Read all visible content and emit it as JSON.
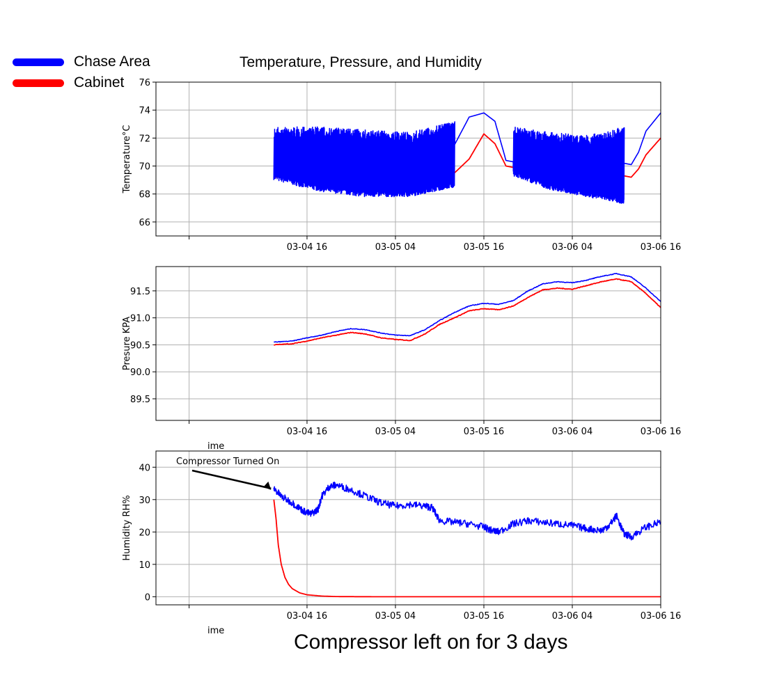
{
  "figure": {
    "title": "Temperature, Pressure, and Humidity",
    "caption": "Compressor left on for 3 days",
    "legend": [
      {
        "name": "Chase Area",
        "color": "#0000ff"
      },
      {
        "name": "Cabinet",
        "color": "#ff0000"
      }
    ]
  },
  "chart_data": [
    {
      "type": "line",
      "title": "",
      "xlabel": "",
      "ylabel": "Temperature°C",
      "ylim": [
        65,
        76
      ],
      "yticks": [
        "66",
        "68",
        "70",
        "72",
        "74",
        "76"
      ],
      "xticks": [
        "03-04 16",
        "03-05 04",
        "03-05 16",
        "03-06 04",
        "03-06 16"
      ],
      "x_hours_note": "hours since 03-04 00:00",
      "grid": true,
      "series": [
        {
          "name": "Chase Area",
          "color": "#0000ff",
          "x": [
            11.5,
            14,
            16,
            18,
            20,
            22,
            24,
            26,
            28,
            30,
            32,
            34,
            35,
            36,
            38,
            40,
            41.5,
            43,
            44,
            45,
            46,
            48,
            50,
            52,
            54,
            56,
            58,
            59,
            60,
            61,
            62,
            64
          ],
          "y": [
            70.1,
            70.0,
            70.2,
            70.3,
            70.2,
            70.0,
            69.9,
            69.8,
            69.8,
            69.9,
            70.3,
            70.6,
            70.2,
            71.5,
            73.5,
            73.8,
            73.2,
            70.4,
            70.3,
            70.2,
            70.0,
            69.8,
            69.6,
            69.4,
            69.2,
            69.0,
            69.4,
            70.2,
            70.1,
            71.0,
            72.5,
            73.8
          ],
          "oscillation": {
            "from": 11.5,
            "to": 36,
            "low": [
              69.0,
              68.2,
              67.8,
              67.8,
              68.5
            ],
            "high": [
              72.8,
              72.8,
              72.6,
              72.4,
              73.2
            ]
          },
          "oscillation2": {
            "from": 44,
            "to": 59,
            "low": [
              69.3,
              68.3,
              67.8,
              67.3
            ],
            "high": [
              72.8,
              72.4,
              72.2,
              72.8
            ]
          }
        },
        {
          "name": "Cabinet",
          "color": "#ff0000",
          "x": [
            11.5,
            14,
            16,
            18,
            20,
            22,
            24,
            26,
            28,
            30,
            32,
            34,
            35,
            36,
            38,
            40,
            41.5,
            43,
            44,
            45,
            46,
            48,
            50,
            52,
            54,
            56,
            58,
            59,
            60,
            61,
            62,
            64
          ],
          "y": [
            69.2,
            69.2,
            69.4,
            69.3,
            69.1,
            69.0,
            68.9,
            68.9,
            68.9,
            69.0,
            69.3,
            69.7,
            69.2,
            69.5,
            70.5,
            72.3,
            71.6,
            70.0,
            69.9,
            69.7,
            69.6,
            69.5,
            69.4,
            69.3,
            69.2,
            69.2,
            69.5,
            69.3,
            69.2,
            69.8,
            70.8,
            72.0
          ]
        }
      ]
    },
    {
      "type": "line",
      "title": "",
      "xlabel": "ime",
      "ylabel": "Presure KPA",
      "ylim": [
        89.1,
        91.95
      ],
      "yticks": [
        "89.5",
        "90.0",
        "90.5",
        "91.0",
        "91.5"
      ],
      "xticks": [
        "03-04 16",
        "03-05 04",
        "03-05 16",
        "03-06 04",
        "03-06 16"
      ],
      "grid": true,
      "series": [
        {
          "name": "Chase Area",
          "color": "#0000ff",
          "x": [
            11.5,
            14,
            16,
            18,
            20,
            22,
            24,
            26,
            28,
            30,
            32,
            34,
            36,
            38,
            40,
            42,
            44,
            46,
            48,
            50,
            52,
            54,
            56,
            58,
            60,
            62,
            64
          ],
          "y": [
            90.55,
            90.57,
            90.63,
            90.68,
            90.75,
            90.8,
            90.78,
            90.72,
            90.68,
            90.67,
            90.78,
            90.95,
            91.1,
            91.22,
            91.27,
            91.25,
            91.32,
            91.5,
            91.63,
            91.67,
            91.65,
            91.7,
            91.77,
            91.82,
            91.76,
            91.55,
            91.3
          ]
        },
        {
          "name": "Cabinet",
          "color": "#ff0000",
          "x": [
            11.5,
            14,
            16,
            18,
            20,
            22,
            24,
            26,
            28,
            30,
            32,
            34,
            36,
            38,
            40,
            42,
            44,
            46,
            48,
            50,
            52,
            54,
            56,
            58,
            60,
            62,
            64
          ],
          "y": [
            90.5,
            90.52,
            90.57,
            90.63,
            90.68,
            90.73,
            90.7,
            90.63,
            90.6,
            90.58,
            90.7,
            90.88,
            91.0,
            91.13,
            91.17,
            91.15,
            91.22,
            91.38,
            91.52,
            91.55,
            91.53,
            91.6,
            91.67,
            91.72,
            91.67,
            91.45,
            91.19
          ]
        }
      ]
    },
    {
      "type": "line",
      "title": "",
      "xlabel": "ime",
      "ylabel": "Humidity RH%",
      "ylim": [
        -2.5,
        45
      ],
      "yticks": [
        "0",
        "10",
        "20",
        "30",
        "40"
      ],
      "xticks": [
        "03-04 16",
        "03-05 04",
        "03-05 16",
        "03-06 04",
        "03-06 16"
      ],
      "grid": true,
      "annotation": {
        "text": "Compressor Turned On",
        "x": 11.5,
        "y": 33
      },
      "series": [
        {
          "name": "Chase Area",
          "color": "#0000ff",
          "x": [
            11.5,
            12.5,
            14,
            15.5,
            16.5,
            17.5,
            18,
            19,
            20,
            22,
            24,
            26,
            28,
            30,
            32,
            33,
            34,
            36,
            38,
            40,
            41,
            42,
            44,
            46,
            48,
            50,
            52,
            54,
            56,
            57,
            58,
            59,
            60,
            62,
            64
          ],
          "y": [
            33.5,
            31,
            29,
            26.5,
            25.5,
            27,
            31,
            34,
            34.5,
            33,
            31,
            29,
            28,
            28.5,
            28,
            27.5,
            23.5,
            23,
            22.5,
            21.5,
            20.5,
            20,
            22.5,
            23.5,
            23,
            22.5,
            22,
            21,
            20.5,
            22,
            25,
            19.5,
            18.5,
            21.5,
            23
          ]
        },
        {
          "name": "Cabinet",
          "color": "#ff0000",
          "x": [
            11.5,
            11.8,
            12.1,
            12.5,
            13,
            13.5,
            14,
            15,
            16,
            18,
            20,
            25,
            35,
            45,
            55,
            64
          ],
          "y": [
            30,
            24,
            16,
            10,
            6,
            3.8,
            2.5,
            1.2,
            0.6,
            0.2,
            0.05,
            0,
            0,
            0,
            0,
            0
          ]
        }
      ]
    }
  ]
}
